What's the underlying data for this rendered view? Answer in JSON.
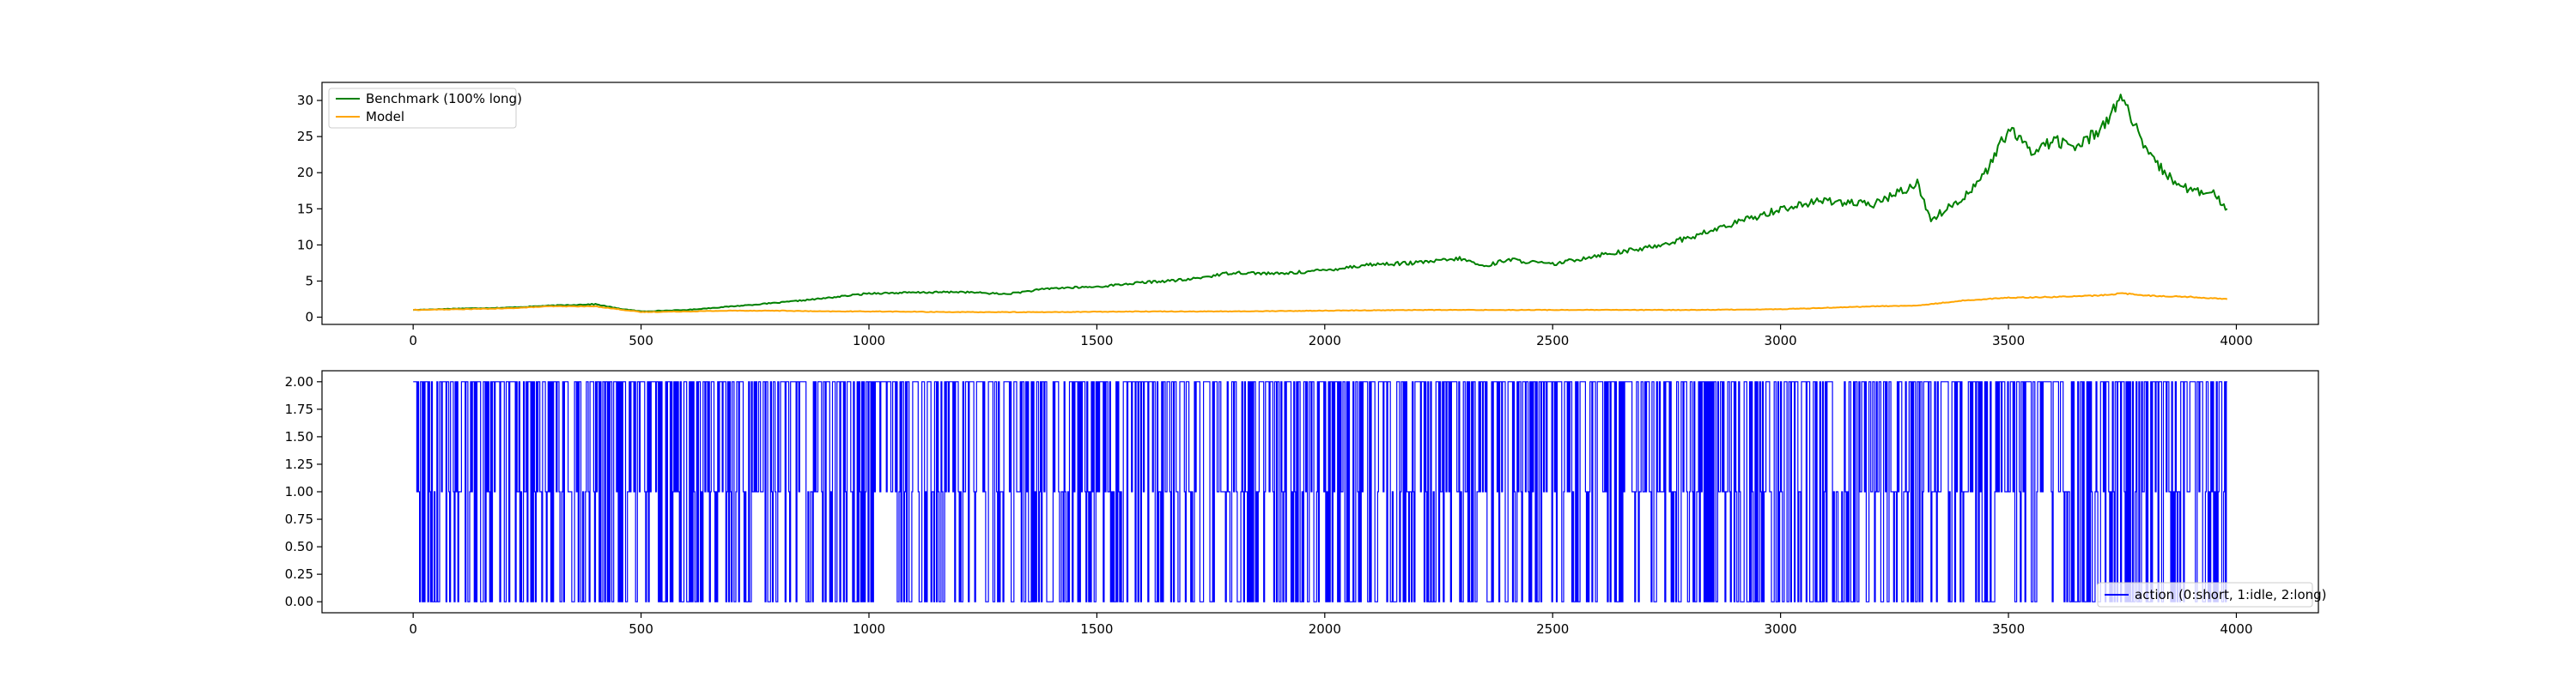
{
  "chart_data": [
    {
      "type": "line",
      "title": "",
      "xlabel": "",
      "ylabel": "",
      "xlim": [
        -200,
        4180
      ],
      "ylim": [
        -1,
        32.5
      ],
      "x_ticks": [
        0,
        500,
        1000,
        1500,
        2000,
        2500,
        3000,
        3500,
        4000
      ],
      "y_ticks": [
        0,
        5,
        10,
        15,
        20,
        25,
        30
      ],
      "grid": false,
      "legend_position": "upper-left",
      "series": [
        {
          "name": "Benchmark (100% long)",
          "color": "#008000",
          "x": [
            0,
            100,
            200,
            300,
            400,
            450,
            500,
            600,
            700,
            800,
            900,
            1000,
            1100,
            1200,
            1300,
            1400,
            1500,
            1600,
            1700,
            1800,
            1900,
            2000,
            2100,
            2200,
            2300,
            2350,
            2400,
            2500,
            2600,
            2700,
            2800,
            2900,
            3000,
            3100,
            3200,
            3300,
            3330,
            3400,
            3450,
            3500,
            3550,
            3600,
            3650,
            3700,
            3750,
            3800,
            3850,
            3900,
            3950,
            3980
          ],
          "y": [
            1.0,
            1.2,
            1.3,
            1.6,
            1.8,
            1.2,
            0.8,
            1.0,
            1.5,
            2.0,
            2.6,
            3.3,
            3.4,
            3.5,
            3.2,
            4.0,
            4.2,
            4.8,
            5.2,
            6.2,
            6.0,
            6.5,
            7.3,
            7.5,
            8.1,
            7.0,
            8.0,
            7.3,
            8.6,
            9.5,
            11.0,
            13.0,
            15.0,
            16.2,
            15.5,
            18.5,
            13.5,
            16.5,
            20.0,
            26.0,
            23.0,
            24.5,
            23.5,
            26.0,
            30.5,
            23.0,
            19.5,
            17.5,
            17.0,
            15.0
          ]
        },
        {
          "name": "Model",
          "color": "#FFA500",
          "x": [
            0,
            100,
            200,
            300,
            400,
            450,
            500,
            600,
            700,
            800,
            900,
            1000,
            1200,
            1400,
            1600,
            1800,
            2000,
            2200,
            2400,
            2600,
            2800,
            3000,
            3200,
            3300,
            3400,
            3500,
            3600,
            3700,
            3750,
            3800,
            3900,
            3980
          ],
          "y": [
            1.0,
            1.1,
            1.2,
            1.5,
            1.5,
            1.1,
            0.7,
            0.8,
            0.9,
            0.9,
            0.8,
            0.8,
            0.7,
            0.7,
            0.8,
            0.8,
            0.9,
            1.0,
            1.0,
            1.0,
            1.0,
            1.1,
            1.5,
            1.6,
            2.3,
            2.7,
            2.8,
            3.0,
            3.3,
            3.0,
            2.8,
            2.5
          ]
        }
      ]
    },
    {
      "type": "line",
      "title": "",
      "xlabel": "",
      "ylabel": "",
      "xlim": [
        -200,
        4180
      ],
      "ylim": [
        -0.1,
        2.1
      ],
      "x_ticks": [
        0,
        500,
        1000,
        1500,
        2000,
        2500,
        3000,
        3500,
        4000
      ],
      "y_ticks": [
        0.0,
        0.25,
        0.5,
        0.75,
        1.0,
        1.25,
        1.5,
        1.75,
        2.0
      ],
      "y_tick_labels": [
        "0.00",
        "0.25",
        "0.50",
        "0.75",
        "1.00",
        "1.25",
        "1.50",
        "1.75",
        "2.00"
      ],
      "grid": false,
      "legend_position": "lower-right",
      "x_range": [
        0,
        3980
      ],
      "values_allowed": [
        0,
        1,
        2
      ],
      "series": [
        {
          "name": "action (0:short, 1:idle, 2:long)",
          "color": "#0000FF"
        }
      ]
    }
  ]
}
